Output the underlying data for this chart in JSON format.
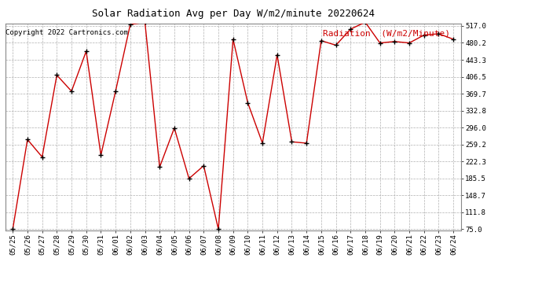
{
  "title": "Solar Radiation Avg per Day W/m2/minute 20220624",
  "copyright": "Copyright 2022 Cartronics.com",
  "legend_label": "Radiation  (W/m2/Minute)",
  "dates": [
    "05/25",
    "05/26",
    "05/27",
    "05/28",
    "05/29",
    "05/30",
    "05/31",
    "06/01",
    "06/02",
    "06/03",
    "06/04",
    "06/05",
    "06/06",
    "06/07",
    "06/08",
    "06/09",
    "06/10",
    "06/11",
    "06/12",
    "06/13",
    "06/14",
    "06/15",
    "06/16",
    "06/17",
    "06/18",
    "06/19",
    "06/20",
    "06/21",
    "06/22",
    "06/23",
    "06/24"
  ],
  "values": [
    75.0,
    270.0,
    232.0,
    410.0,
    375.0,
    462.0,
    236.0,
    375.0,
    520.0,
    525.0,
    210.0,
    295.0,
    185.0,
    213.0,
    75.0,
    488.0,
    350.0,
    262.0,
    454.0,
    265.0,
    262.0,
    485.0,
    475.0,
    510.0,
    525.0,
    480.0,
    483.0,
    480.0,
    497.0,
    500.0,
    488.0
  ],
  "y_ticks": [
    75.0,
    111.8,
    148.7,
    185.5,
    222.3,
    259.2,
    296.0,
    332.8,
    369.7,
    406.5,
    443.3,
    480.2,
    517.0
  ],
  "ymin": 75.0,
  "ymax": 517.0,
  "line_color": "#cc0000",
  "marker_color": "#000000",
  "bg_color": "#ffffff",
  "grid_color": "#b0b0b0",
  "title_fontsize": 9,
  "copyright_fontsize": 6.5,
  "legend_fontsize": 8,
  "tick_fontsize": 6.5
}
